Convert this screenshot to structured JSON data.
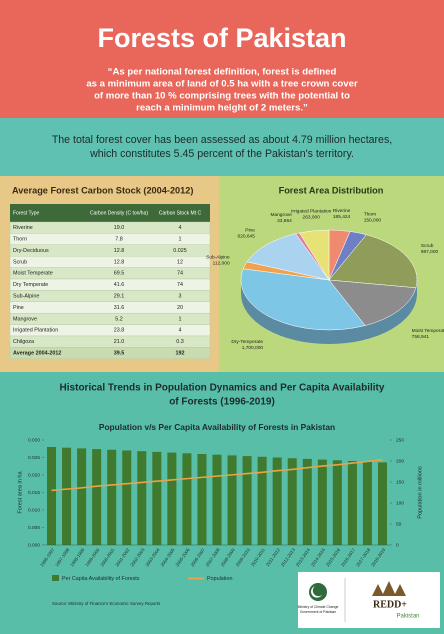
{
  "header": {
    "title": "Forests of Pakistan",
    "quote_lines": [
      "“As per national forest definition, forest is defined",
      "as a minimum area of land of 0.5 ha with a tree crown cover",
      "of more than 10 % comprising trees with the potential to",
      "reach a minimum height of 2 meters.”"
    ]
  },
  "statement_lines": [
    "The total forest cover has been assessed as about 4.79 million hectares,",
    "which constitutes 5.45 percent of the Pakistan's territory."
  ],
  "table": {
    "title": "Average Forest Carbon Stock (2004-2012)",
    "columns": [
      "Forest Type",
      "Carbon Density (C ton/ha)",
      "Carbon Stock Mt C"
    ],
    "rows": [
      [
        "Riverine",
        "19.0",
        "4"
      ],
      [
        "Thorn",
        "7.8",
        "1"
      ],
      [
        "Dry-Deciduous",
        "12.8",
        "0.025"
      ],
      [
        "Scrub",
        "12.8",
        "12"
      ],
      [
        "Moist Temperate",
        "69.5",
        "74"
      ],
      [
        "Dry Temperate",
        "41.6",
        "74"
      ],
      [
        "Sub-Alpine",
        "29.1",
        "3"
      ],
      [
        "Pine",
        "31.6",
        "20"
      ],
      [
        "Mangrove",
        "5.2",
        "1"
      ],
      [
        "Irrigated Plantation",
        "23.8",
        "4"
      ],
      [
        "Chilgoza",
        "21.0",
        "0.3"
      ],
      [
        "Average 2004-2012",
        "39.5",
        "192"
      ]
    ]
  },
  "trends_title_lines": [
    "Historical Trends in Population Dynamics and Per Capita Availability",
    "of Forests (1996-2019)"
  ],
  "chart_data": [
    {
      "type": "pie",
      "title": "Forest Area Distribution",
      "categories": [
        "Riverine",
        "Thorn",
        "Scrub",
        "Moist Temperate",
        "Dry-Temperate",
        "Sub-Alpine",
        "Pine",
        "Mangrove",
        "Irrigated Plantation"
      ],
      "values": [
        185424,
        150000,
        987000,
        758941,
        1700000,
        112000,
        620645,
        33864,
        263000
      ],
      "value_labels": [
        "185,424",
        "150,000",
        "987,000",
        "758,941",
        "1,700,000",
        "112,000",
        "620,645",
        "33,864",
        "263,000"
      ],
      "colors": [
        "#ef8a6f",
        "#6f7fc6",
        "#8f9c5a",
        "#8c8c8c",
        "#7ec6e6",
        "#f2a24e",
        "#aad3ef",
        "#e27c9b",
        "#e6e276"
      ]
    },
    {
      "type": "bar_line",
      "title": "Population v/s Per Capita Availability of Forests in Pakistan",
      "ylabel": "Forest area in ha",
      "y2label": "Population in millions",
      "categories": [
        "1996-1997",
        "1997-1998",
        "1998-1999",
        "1999-2000",
        "2000-2001",
        "2001-2002",
        "2002-2003",
        "2003-2004",
        "2004-2005",
        "2005-2006",
        "2006-2007",
        "2007-2008",
        "2008-2009",
        "2009-2010",
        "2010-2011",
        "2011-2012",
        "2012-2013",
        "2013-2014",
        "2014-2015",
        "2015-2016",
        "2016-2017",
        "2017-2018",
        "2018-2019"
      ],
      "series": [
        {
          "name": "Per Capita Availability of Forests",
          "color": "#3f7a2e",
          "type": "bar",
          "values": [
            0.028,
            0.0278,
            0.0276,
            0.0274,
            0.0272,
            0.027,
            0.0268,
            0.0266,
            0.0264,
            0.0262,
            0.026,
            0.0258,
            0.0256,
            0.0254,
            0.0252,
            0.025,
            0.0248,
            0.0246,
            0.0244,
            0.0242,
            0.024,
            0.0238,
            0.0236
          ]
        },
        {
          "name": "Population",
          "color": "#e8a44a",
          "type": "line",
          "axis": "y2",
          "values": [
            130,
            133,
            136,
            140,
            143,
            146,
            149,
            152,
            155,
            158,
            161,
            164,
            167,
            170,
            173,
            177,
            180,
            184,
            188,
            191,
            195,
            199,
            203
          ]
        }
      ],
      "ylim": [
        0,
        0.03
      ],
      "yticks": [
        {
          "value": 0,
          "label": "0.000"
        },
        {
          "value": 0.005,
          "label": "0.005"
        },
        {
          "value": 0.01,
          "label": "0.010"
        },
        {
          "value": 0.015,
          "label": "0.015"
        },
        {
          "value": 0.02,
          "label": "0.020"
        },
        {
          "value": 0.025,
          "label": "0.025"
        },
        {
          "value": 0.03,
          "label": "0.030"
        }
      ],
      "y2lim": [
        0,
        250
      ],
      "y2ticks": [
        0,
        50,
        100,
        150,
        200,
        250
      ]
    }
  ],
  "source": "Source: Ministry of Finance's Economic Survey Reports",
  "logos": {
    "ministry_lines": [
      "Ministry of Climate Change",
      "Government of Pakistan"
    ],
    "brand": "REDD+",
    "country": "Pakistan"
  }
}
